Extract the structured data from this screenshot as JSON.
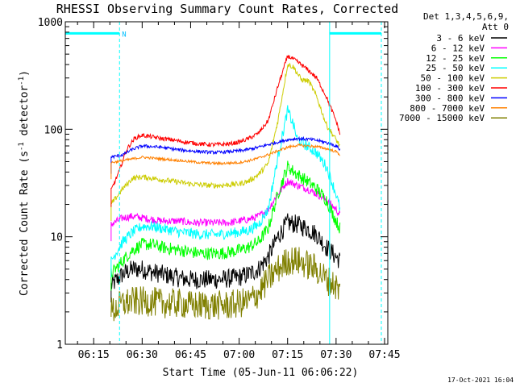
{
  "chart_data": {
    "type": "line",
    "title": "RHESSI Observing Summary Count Rates, Corrected",
    "xlabel": "Start Time (05-Jun-11 06:06:22)",
    "ylabel": "Corrected Count Rate (s",
    "ylabel_sup1": "-1",
    "ylabel_mid": " detector",
    "ylabel_sup2": "-1",
    "ylabel_end": ")",
    "yscale": "log",
    "ylim": [
      1,
      1000
    ],
    "xlim": [
      6.1037,
      7.7667
    ],
    "x_ticks": [
      {
        "label": "06:15",
        "value": 6.25
      },
      {
        "label": "06:30",
        "value": 6.5
      },
      {
        "label": "06:45",
        "value": 6.75
      },
      {
        "label": "07:00",
        "value": 7.0
      },
      {
        "label": "07:15",
        "value": 7.25
      },
      {
        "label": "07:30",
        "value": 7.5
      },
      {
        "label": "07:45",
        "value": 7.75
      }
    ],
    "y_ticks": [
      {
        "label": "1",
        "value": 1
      },
      {
        "label": "10",
        "value": 10
      },
      {
        "label": "100",
        "value": 100
      },
      {
        "label": "1000",
        "value": 1000
      }
    ],
    "legend_header": [
      "Det 1,3,4,5,6,9,",
      "Att 0"
    ],
    "legend_placement": "right",
    "night_marker": "N",
    "night_periods": [
      {
        "start": 6.1037,
        "end": 6.3833
      },
      {
        "start": 7.4667,
        "end": 7.7333
      }
    ],
    "night_level": 780,
    "saa_lines": [
      6.3833,
      7.7333
    ],
    "data_start": 6.3333,
    "data_end": 7.525,
    "series": [
      {
        "name": "3 - 6 keV",
        "color": "#000000",
        "values": [
          [
            6.34,
            3.5
          ],
          [
            6.4,
            4.5
          ],
          [
            6.45,
            5.0
          ],
          [
            6.5,
            5.0
          ],
          [
            6.55,
            4.7
          ],
          [
            6.6,
            4.5
          ],
          [
            6.65,
            4.3
          ],
          [
            6.7,
            4.1
          ],
          [
            6.75,
            4.0
          ],
          [
            6.8,
            4.0
          ],
          [
            6.85,
            4.0
          ],
          [
            6.9,
            4.0
          ],
          [
            6.95,
            4.1
          ],
          [
            7.0,
            4.2
          ],
          [
            7.05,
            4.5
          ],
          [
            7.1,
            5.0
          ],
          [
            7.15,
            6.5
          ],
          [
            7.2,
            10.0
          ],
          [
            7.25,
            13.5
          ],
          [
            7.3,
            13.0
          ],
          [
            7.35,
            12.0
          ],
          [
            7.4,
            10.5
          ],
          [
            7.45,
            8.0
          ],
          [
            7.5,
            6.5
          ],
          [
            7.52,
            6.0
          ]
        ]
      },
      {
        "name": "6 - 12 keV",
        "color": "#ff00ff",
        "values": [
          [
            6.34,
            13.0
          ],
          [
            6.4,
            15.0
          ],
          [
            6.45,
            15.5
          ],
          [
            6.5,
            15.0
          ],
          [
            6.55,
            14.5
          ],
          [
            6.6,
            14.0
          ],
          [
            6.65,
            14.0
          ],
          [
            6.7,
            14.0
          ],
          [
            6.75,
            13.5
          ],
          [
            6.8,
            13.5
          ],
          [
            6.85,
            13.5
          ],
          [
            6.9,
            13.5
          ],
          [
            6.95,
            13.5
          ],
          [
            7.0,
            14.0
          ],
          [
            7.05,
            14.5
          ],
          [
            7.1,
            15.5
          ],
          [
            7.15,
            18.0
          ],
          [
            7.2,
            25.0
          ],
          [
            7.25,
            33.0
          ],
          [
            7.3,
            30.0
          ],
          [
            7.35,
            28.0
          ],
          [
            7.4,
            25.0
          ],
          [
            7.45,
            22.0
          ],
          [
            7.5,
            18.0
          ],
          [
            7.52,
            16.0
          ]
        ]
      },
      {
        "name": "12 - 25 keV",
        "color": "#00ff00",
        "values": [
          [
            6.34,
            4.5
          ],
          [
            6.4,
            6.0
          ],
          [
            6.45,
            7.5
          ],
          [
            6.5,
            8.5
          ],
          [
            6.55,
            8.5
          ],
          [
            6.6,
            8.0
          ],
          [
            6.65,
            7.7
          ],
          [
            6.7,
            7.5
          ],
          [
            6.75,
            7.2
          ],
          [
            6.8,
            7.0
          ],
          [
            6.85,
            7.0
          ],
          [
            6.9,
            7.0
          ],
          [
            6.95,
            7.2
          ],
          [
            7.0,
            7.5
          ],
          [
            7.05,
            8.0
          ],
          [
            7.1,
            9.0
          ],
          [
            7.15,
            12.0
          ],
          [
            7.2,
            25.0
          ],
          [
            7.25,
            45.0
          ],
          [
            7.3,
            38.0
          ],
          [
            7.35,
            33.0
          ],
          [
            7.4,
            28.0
          ],
          [
            7.45,
            22.0
          ],
          [
            7.5,
            14.0
          ],
          [
            7.52,
            12.0
          ]
        ]
      },
      {
        "name": "25 - 50 keV",
        "color": "#00ffff",
        "values": [
          [
            6.34,
            6.0
          ],
          [
            6.4,
            9.0
          ],
          [
            6.45,
            11.0
          ],
          [
            6.5,
            12.5
          ],
          [
            6.55,
            12.5
          ],
          [
            6.6,
            12.0
          ],
          [
            6.65,
            11.5
          ],
          [
            6.7,
            11.0
          ],
          [
            6.75,
            10.8
          ],
          [
            6.8,
            10.5
          ],
          [
            6.85,
            10.5
          ],
          [
            6.9,
            10.5
          ],
          [
            6.95,
            10.8
          ],
          [
            7.0,
            11.0
          ],
          [
            7.05,
            11.5
          ],
          [
            7.1,
            13.0
          ],
          [
            7.15,
            18.0
          ],
          [
            7.2,
            55.0
          ],
          [
            7.25,
            150.0
          ],
          [
            7.28,
            110.0
          ],
          [
            7.3,
            80.0
          ],
          [
            7.35,
            70.0
          ],
          [
            7.4,
            60.0
          ],
          [
            7.45,
            45.0
          ],
          [
            7.5,
            25.0
          ],
          [
            7.52,
            18.0
          ]
        ]
      },
      {
        "name": "50 - 100 keV",
        "color": "#cccc00",
        "values": [
          [
            6.34,
            20.0
          ],
          [
            6.4,
            28.0
          ],
          [
            6.45,
            35.0
          ],
          [
            6.5,
            36.0
          ],
          [
            6.55,
            35.0
          ],
          [
            6.6,
            34.0
          ],
          [
            6.65,
            33.0
          ],
          [
            6.7,
            32.0
          ],
          [
            6.75,
            31.0
          ],
          [
            6.8,
            30.5
          ],
          [
            6.85,
            30.0
          ],
          [
            6.9,
            30.0
          ],
          [
            6.95,
            30.5
          ],
          [
            7.0,
            31.0
          ],
          [
            7.05,
            33.0
          ],
          [
            7.1,
            38.0
          ],
          [
            7.15,
            48.0
          ],
          [
            7.2,
            120.0
          ],
          [
            7.25,
            400.0
          ],
          [
            7.28,
            380.0
          ],
          [
            7.32,
            290.0
          ],
          [
            7.36,
            280.0
          ],
          [
            7.4,
            200.0
          ],
          [
            7.45,
            110.0
          ],
          [
            7.5,
            80.0
          ],
          [
            7.52,
            70.0
          ]
        ]
      },
      {
        "name": "100 - 300 keV",
        "color": "#ff0000",
        "values": [
          [
            6.34,
            27.0
          ],
          [
            6.38,
            40.0
          ],
          [
            6.42,
            65.0
          ],
          [
            6.46,
            82.0
          ],
          [
            6.5,
            88.0
          ],
          [
            6.55,
            85.0
          ],
          [
            6.6,
            82.0
          ],
          [
            6.65,
            80.0
          ],
          [
            6.7,
            77.0
          ],
          [
            6.75,
            75.0
          ],
          [
            6.8,
            73.0
          ],
          [
            6.85,
            72.0
          ],
          [
            6.9,
            72.0
          ],
          [
            6.95,
            73.0
          ],
          [
            7.0,
            76.0
          ],
          [
            7.05,
            82.0
          ],
          [
            7.1,
            92.0
          ],
          [
            7.15,
            120.0
          ],
          [
            7.2,
            250.0
          ],
          [
            7.25,
            480.0
          ],
          [
            7.28,
            450.0
          ],
          [
            7.32,
            400.0
          ],
          [
            7.36,
            350.0
          ],
          [
            7.4,
            300.0
          ],
          [
            7.45,
            200.0
          ],
          [
            7.5,
            120.0
          ],
          [
            7.52,
            90.0
          ]
        ]
      },
      {
        "name": "300 - 800 keV",
        "color": "#0000ff",
        "values": [
          [
            6.34,
            55.0
          ],
          [
            6.4,
            58.0
          ],
          [
            6.45,
            65.0
          ],
          [
            6.5,
            70.0
          ],
          [
            6.55,
            69.0
          ],
          [
            6.6,
            68.0
          ],
          [
            6.65,
            66.0
          ],
          [
            6.7,
            64.0
          ],
          [
            6.75,
            63.0
          ],
          [
            6.8,
            62.0
          ],
          [
            6.85,
            61.0
          ],
          [
            6.9,
            61.0
          ],
          [
            6.95,
            62.0
          ],
          [
            7.0,
            63.0
          ],
          [
            7.05,
            65.0
          ],
          [
            7.1,
            68.0
          ],
          [
            7.15,
            72.0
          ],
          [
            7.2,
            76.0
          ],
          [
            7.25,
            80.0
          ],
          [
            7.3,
            82.0
          ],
          [
            7.35,
            81.0
          ],
          [
            7.4,
            79.0
          ],
          [
            7.45,
            75.0
          ],
          [
            7.5,
            70.0
          ],
          [
            7.52,
            65.0
          ]
        ]
      },
      {
        "name": "800 - 7000 keV",
        "color": "#ff8000",
        "values": [
          [
            6.34,
            49.0
          ],
          [
            6.4,
            51.0
          ],
          [
            6.45,
            53.0
          ],
          [
            6.5,
            55.0
          ],
          [
            6.55,
            54.0
          ],
          [
            6.6,
            53.0
          ],
          [
            6.65,
            52.0
          ],
          [
            6.7,
            51.0
          ],
          [
            6.75,
            50.0
          ],
          [
            6.8,
            49.0
          ],
          [
            6.85,
            48.5
          ],
          [
            6.9,
            48.0
          ],
          [
            6.95,
            48.5
          ],
          [
            7.0,
            49.0
          ],
          [
            7.05,
            51.0
          ],
          [
            7.1,
            54.0
          ],
          [
            7.15,
            58.0
          ],
          [
            7.2,
            63.0
          ],
          [
            7.25,
            68.0
          ],
          [
            7.3,
            71.0
          ],
          [
            7.35,
            70.0
          ],
          [
            7.4,
            69.0
          ],
          [
            7.45,
            66.0
          ],
          [
            7.5,
            62.0
          ],
          [
            7.52,
            58.0
          ]
        ]
      },
      {
        "name": "7000 - 15000 keV",
        "color": "#808000",
        "values": [
          [
            6.34,
            2.0
          ],
          [
            6.4,
            2.4
          ],
          [
            6.45,
            2.5
          ],
          [
            6.5,
            2.5
          ],
          [
            6.55,
            2.5
          ],
          [
            6.6,
            2.4
          ],
          [
            6.65,
            2.4
          ],
          [
            6.7,
            2.4
          ],
          [
            6.75,
            2.3
          ],
          [
            6.8,
            2.3
          ],
          [
            6.85,
            2.3
          ],
          [
            6.9,
            2.3
          ],
          [
            6.95,
            2.3
          ],
          [
            7.0,
            2.4
          ],
          [
            7.05,
            2.5
          ],
          [
            7.1,
            3.0
          ],
          [
            7.15,
            4.0
          ],
          [
            7.2,
            5.0
          ],
          [
            7.25,
            6.0
          ],
          [
            7.3,
            6.0
          ],
          [
            7.35,
            5.5
          ],
          [
            7.4,
            5.0
          ],
          [
            7.45,
            4.0
          ],
          [
            7.5,
            3.5
          ],
          [
            7.52,
            3.0
          ]
        ]
      }
    ]
  },
  "timestamp": "17-Oct-2021 16:04"
}
